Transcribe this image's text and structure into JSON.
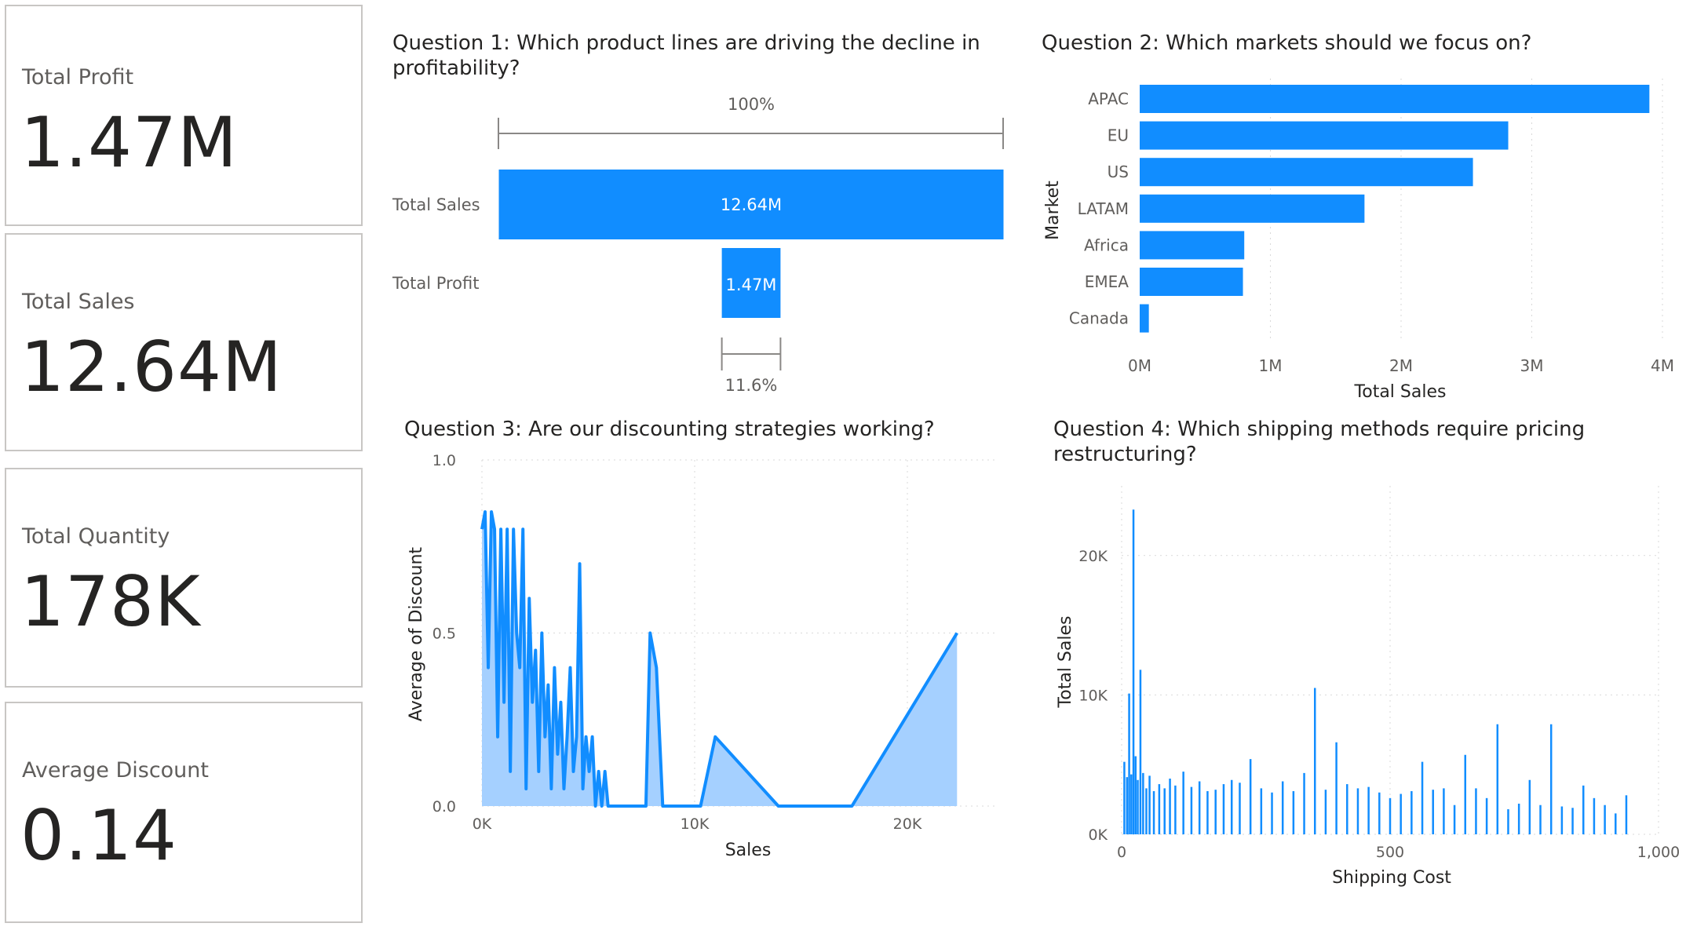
{
  "cards": [
    {
      "label": "Total Profit",
      "value": "1.47M"
    },
    {
      "label": "Total Sales",
      "value": "12.64M"
    },
    {
      "label": "Total Quantity",
      "value": "178K"
    },
    {
      "label": "Average Discount",
      "value": "0.14"
    }
  ],
  "colors": {
    "primary": "#118dff",
    "light_fill": "#a5d0ff",
    "grid": "#d9d9d9",
    "axis_text": "#605e5c"
  },
  "chart_data": [
    {
      "type": "funnel",
      "title": "Question 1: Which product lines are driving the decline in profitability?",
      "stages": [
        {
          "label": "Total Sales",
          "value": 12.64,
          "display": "12.64M"
        },
        {
          "label": "Total Profit",
          "value": 1.47,
          "display": "1.47M"
        }
      ],
      "top_percent": "100%",
      "bottom_percent": "11.6%"
    },
    {
      "type": "bar",
      "orientation": "horizontal",
      "title": "Question 2: Which markets should we focus on?",
      "categories": [
        "APAC",
        "EU",
        "US",
        "LATAM",
        "Africa",
        "EMEA",
        "Canada"
      ],
      "values": [
        3.9,
        2.82,
        2.55,
        1.72,
        0.8,
        0.79,
        0.07
      ],
      "xlabel": "Total Sales",
      "ylabel": "Market",
      "xlim": [
        0,
        4
      ],
      "xticks": [
        "0M",
        "1M",
        "2M",
        "3M",
        "4M"
      ]
    },
    {
      "type": "area",
      "title": "Question 3: Are our discounting strategies working?",
      "xlabel": "Sales",
      "ylabel": "Average of Discount",
      "xlim": [
        0,
        23000
      ],
      "ylim": [
        0,
        1.0
      ],
      "xticks": [
        "0K",
        "10K",
        "20K"
      ],
      "yticks": [
        "0.0",
        "0.5",
        "1.0"
      ],
      "x": [
        0,
        150,
        300,
        450,
        600,
        750,
        900,
        1050,
        1200,
        1350,
        1500,
        1650,
        1800,
        1950,
        2100,
        2250,
        2400,
        2550,
        2700,
        2850,
        3000,
        3150,
        3300,
        3450,
        3600,
        3750,
        3900,
        4050,
        4200,
        4350,
        4500,
        4650,
        4800,
        4950,
        5100,
        5250,
        5400,
        5550,
        5700,
        5850,
        6000,
        7000,
        7800,
        8000,
        8300,
        8600,
        9000,
        10400,
        11100,
        14100,
        17600,
        22600
      ],
      "y": [
        0.8,
        0.85,
        0.4,
        0.85,
        0.8,
        0.2,
        0.8,
        0.3,
        0.8,
        0.1,
        0.8,
        0.5,
        0.4,
        0.8,
        0.05,
        0.6,
        0.3,
        0.45,
        0.1,
        0.5,
        0.2,
        0.35,
        0.05,
        0.4,
        0.15,
        0.3,
        0.05,
        0.2,
        0.4,
        0.1,
        0.2,
        0.7,
        0.05,
        0.2,
        0.1,
        0.2,
        0.0,
        0.1,
        0.0,
        0.1,
        0.0,
        0.0,
        0.0,
        0.5,
        0.4,
        0.0,
        0.0,
        0.0,
        0.2,
        0.0,
        0.0,
        0.5
      ]
    },
    {
      "type": "bar",
      "orientation": "vertical",
      "title": "Question 4: Which shipping methods require pricing restructuring?",
      "xlabel": "Shipping Cost",
      "ylabel": "Total Sales",
      "xlim": [
        0,
        1000
      ],
      "ylim": [
        0,
        25000
      ],
      "xticks": [
        "0",
        "500",
        "1,000"
      ],
      "yticks": [
        "0K",
        "10K",
        "20K"
      ],
      "x": [
        5,
        10,
        14,
        18,
        22,
        26,
        30,
        35,
        40,
        46,
        52,
        60,
        70,
        80,
        90,
        100,
        115,
        130,
        145,
        160,
        175,
        190,
        205,
        220,
        240,
        260,
        280,
        300,
        320,
        340,
        360,
        380,
        400,
        420,
        440,
        460,
        480,
        500,
        520,
        540,
        560,
        580,
        600,
        620,
        640,
        660,
        680,
        700,
        720,
        740,
        760,
        780,
        800,
        820,
        840,
        860,
        880,
        900,
        920,
        940
      ],
      "values": [
        5200,
        4100,
        10100,
        4300,
        23300,
        5600,
        3900,
        11800,
        4400,
        3300,
        4200,
        3100,
        3600,
        3300,
        4000,
        3500,
        4500,
        3400,
        3800,
        3100,
        3200,
        3600,
        3900,
        3700,
        5400,
        3300,
        3000,
        3800,
        3100,
        4400,
        10500,
        3200,
        6600,
        3600,
        3300,
        3400,
        3000,
        2600,
        2900,
        3100,
        5200,
        3200,
        3300,
        2100,
        5700,
        3300,
        2600,
        7900,
        1800,
        2200,
        3900,
        2100,
        7900,
        2000,
        1900,
        3500,
        2600,
        2100,
        1500,
        2800
      ]
    }
  ]
}
